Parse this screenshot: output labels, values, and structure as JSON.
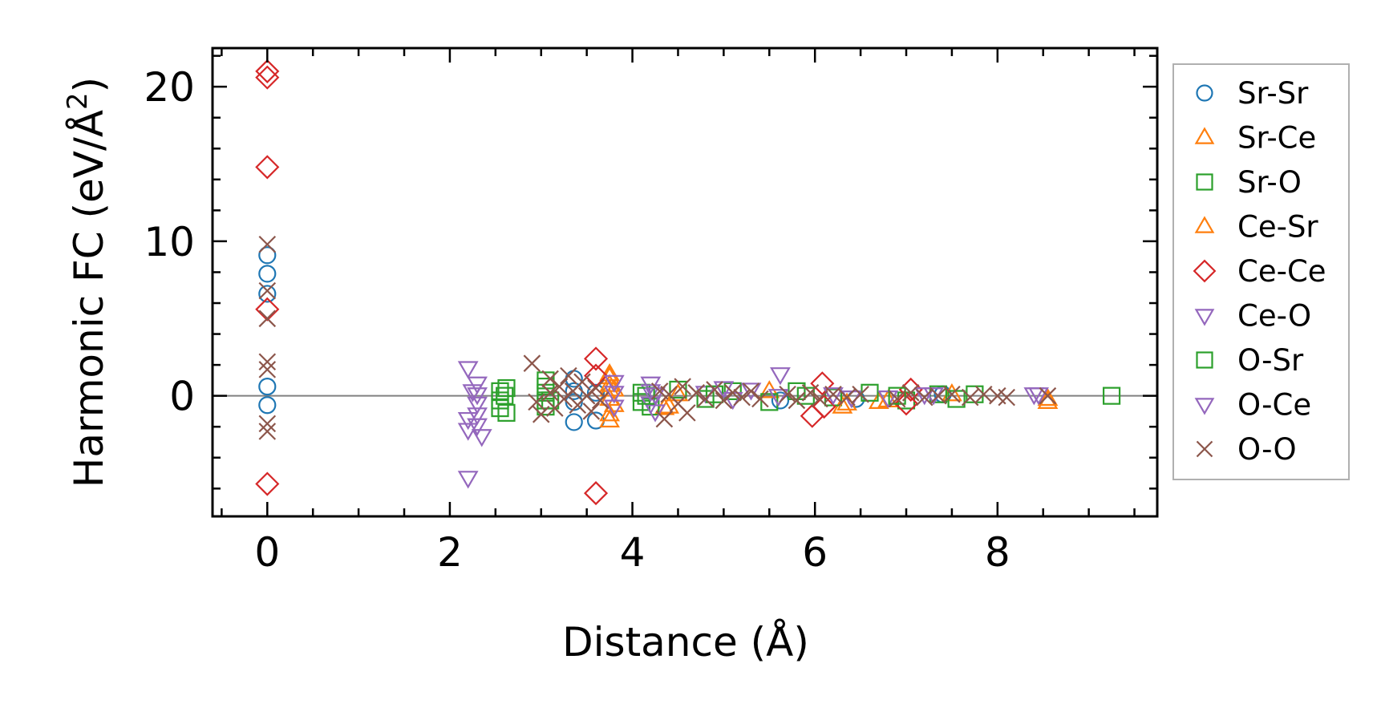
{
  "chart_data": {
    "type": "scatter",
    "xlabel": "Distance (Å)",
    "ylabel": "Harmonic FC (eV/Å",
    "ylabel_sup": "2",
    "ylabel_close": ")",
    "xlim": [
      -0.6,
      9.75
    ],
    "ylim": [
      -7.8,
      22.5
    ],
    "xticks": [
      0,
      2,
      4,
      6,
      8
    ],
    "xtick_labels": [
      "0",
      "2",
      "4",
      "6",
      "8"
    ],
    "yticks": [
      0,
      10,
      20
    ],
    "ytick_labels": [
      "0",
      "10",
      "20"
    ],
    "x_minor_step": 0.5,
    "y_minor_step": 2,
    "zero_line": true,
    "grid": false,
    "legend_position": "outside-right",
    "series": [
      {
        "name": "Sr-Sr",
        "marker": "circle",
        "color": "#1f77b4",
        "points": [
          [
            0,
            9.1
          ],
          [
            0,
            7.9
          ],
          [
            0,
            6.6
          ],
          [
            0,
            0.6
          ],
          [
            0,
            -0.6
          ],
          [
            3.36,
            1.1
          ],
          [
            3.36,
            0.3
          ],
          [
            3.36,
            -0.4
          ],
          [
            3.36,
            -1.7
          ],
          [
            3.6,
            -1.6
          ],
          [
            3.6,
            0.2
          ],
          [
            5.62,
            -0.3
          ],
          [
            6.45,
            -0.2
          ],
          [
            7.4,
            0.1
          ]
        ]
      },
      {
        "name": "Sr-Ce",
        "marker": "triangle-up",
        "color": "#ff7f0e",
        "points": [
          [
            3.75,
            1.2
          ],
          [
            3.75,
            0.7
          ],
          [
            3.75,
            -0.2
          ],
          [
            3.75,
            -1.6
          ],
          [
            3.8,
            0.4
          ],
          [
            4.35,
            -0.8
          ],
          [
            4.5,
            0.1
          ],
          [
            5.5,
            0.3
          ],
          [
            6.3,
            -0.7
          ],
          [
            6.7,
            -0.4
          ],
          [
            7.5,
            0.1
          ],
          [
            8.55,
            -0.4
          ]
        ]
      },
      {
        "name": "Sr-O",
        "marker": "square",
        "color": "#2ca02c",
        "points": [
          [
            2.55,
            0.3
          ],
          [
            2.55,
            -0.3
          ],
          [
            2.55,
            -0.8
          ],
          [
            2.62,
            0.5
          ],
          [
            2.62,
            -1.1
          ],
          [
            3.05,
            1.0
          ],
          [
            3.05,
            0.2
          ],
          [
            3.05,
            -0.7
          ],
          [
            3.1,
            -0.3
          ],
          [
            4.1,
            0.2
          ],
          [
            4.1,
            -0.4
          ],
          [
            4.2,
            -0.7
          ],
          [
            4.5,
            0.4
          ],
          [
            4.8,
            -0.2
          ],
          [
            5.1,
            0.3
          ],
          [
            5.5,
            -0.4
          ],
          [
            5.8,
            0.3
          ],
          [
            6.2,
            -0.1
          ],
          [
            6.6,
            0.2
          ],
          [
            7.0,
            -0.3
          ],
          [
            7.35,
            0.1
          ],
          [
            7.55,
            -0.2
          ],
          [
            7.75,
            0.1
          ],
          [
            9.25,
            0.0
          ]
        ]
      },
      {
        "name": "Ce-Sr",
        "marker": "triangle-up",
        "color": "#ff7f0e",
        "points": [
          [
            3.75,
            1.4
          ],
          [
            3.75,
            0.4
          ],
          [
            3.75,
            -1.2
          ],
          [
            3.8,
            -0.6
          ],
          [
            4.4,
            -0.7
          ],
          [
            6.35,
            -0.5
          ],
          [
            6.8,
            -0.3
          ],
          [
            8.55,
            -0.2
          ]
        ]
      },
      {
        "name": "Ce-Ce",
        "marker": "diamond",
        "color": "#d62728",
        "points": [
          [
            0,
            21.0
          ],
          [
            0,
            20.6
          ],
          [
            0,
            14.8
          ],
          [
            0,
            5.6
          ],
          [
            0,
            -5.7
          ],
          [
            3.6,
            2.4
          ],
          [
            3.6,
            1.3
          ],
          [
            3.6,
            -6.3
          ],
          [
            5.97,
            -1.3
          ],
          [
            6.08,
            0.8
          ],
          [
            6.1,
            -0.7
          ],
          [
            7.0,
            -0.5
          ],
          [
            7.05,
            0.4
          ]
        ]
      },
      {
        "name": "Ce-O",
        "marker": "triangle-down",
        "color": "#9467bd",
        "points": [
          [
            2.2,
            1.8
          ],
          [
            2.2,
            -1.5
          ],
          [
            2.2,
            -2.2
          ],
          [
            2.2,
            -5.3
          ],
          [
            2.3,
            0.8
          ],
          [
            2.3,
            0.1
          ],
          [
            2.3,
            -0.5
          ],
          [
            2.3,
            -1.2
          ],
          [
            2.35,
            -2.6
          ],
          [
            3.8,
            0.9
          ],
          [
            3.8,
            -0.7
          ],
          [
            4.2,
            0.8
          ],
          [
            4.2,
            0.3
          ],
          [
            4.2,
            -0.5
          ],
          [
            4.25,
            -1.0
          ],
          [
            4.8,
            0.2
          ],
          [
            5.1,
            -0.2
          ],
          [
            5.3,
            0.4
          ],
          [
            5.62,
            1.4
          ],
          [
            6.2,
            0.1
          ],
          [
            6.8,
            -0.1
          ],
          [
            7.3,
            0.1
          ],
          [
            8.45,
            0.1
          ]
        ]
      },
      {
        "name": "O-Sr",
        "marker": "square",
        "color": "#2ca02c",
        "points": [
          [
            2.6,
            0.0
          ],
          [
            3.05,
            0.6
          ],
          [
            3.05,
            -0.3
          ],
          [
            4.15,
            0.0
          ],
          [
            4.9,
            0.1
          ],
          [
            5.9,
            0.0
          ],
          [
            6.9,
            0.0
          ]
        ]
      },
      {
        "name": "O-Ce",
        "marker": "triangle-down",
        "color": "#9467bd",
        "points": [
          [
            2.25,
            0.3
          ],
          [
            2.3,
            -1.9
          ],
          [
            3.8,
            0.2
          ],
          [
            4.25,
            0.1
          ],
          [
            5.0,
            0.5
          ],
          [
            5.6,
            0.0
          ],
          [
            6.4,
            -0.1
          ],
          [
            7.2,
            0.1
          ],
          [
            8.4,
            0.1
          ]
        ]
      },
      {
        "name": "O-O",
        "marker": "x",
        "color": "#8c564b",
        "points": [
          [
            0,
            9.8
          ],
          [
            0,
            6.8
          ],
          [
            0,
            5.0
          ],
          [
            0,
            2.2
          ],
          [
            0,
            1.7
          ],
          [
            0,
            -1.8
          ],
          [
            0,
            -2.3
          ],
          [
            2.9,
            2.1
          ],
          [
            2.95,
            -0.4
          ],
          [
            3.0,
            -1.2
          ],
          [
            3.1,
            1.1
          ],
          [
            3.1,
            0.2
          ],
          [
            3.15,
            -0.8
          ],
          [
            3.2,
            0.6
          ],
          [
            3.25,
            -0.2
          ],
          [
            3.3,
            1.3
          ],
          [
            3.35,
            0.3
          ],
          [
            3.4,
            -0.6
          ],
          [
            3.45,
            0.9
          ],
          [
            3.5,
            0.0
          ],
          [
            3.55,
            -1.0
          ],
          [
            3.6,
            0.5
          ],
          [
            3.65,
            -0.3
          ],
          [
            4.3,
            0.3
          ],
          [
            4.35,
            -1.5
          ],
          [
            4.4,
            0.1
          ],
          [
            4.5,
            -0.5
          ],
          [
            4.55,
            0.6
          ],
          [
            4.6,
            -1.1
          ],
          [
            4.7,
            0.2
          ],
          [
            4.8,
            -0.2
          ],
          [
            4.9,
            0.4
          ],
          [
            5.0,
            -0.3
          ],
          [
            5.1,
            0.2
          ],
          [
            5.2,
            -0.1
          ],
          [
            5.3,
            0.3
          ],
          [
            5.4,
            -0.2
          ],
          [
            5.7,
            0.1
          ],
          [
            5.8,
            -0.3
          ],
          [
            5.95,
            0.2
          ],
          [
            6.05,
            -0.2
          ],
          [
            6.2,
            0.1
          ],
          [
            6.35,
            -0.1
          ],
          [
            6.5,
            0.1
          ],
          [
            6.9,
            -0.2
          ],
          [
            7.05,
            0.2
          ],
          [
            7.2,
            -0.1
          ],
          [
            7.35,
            0.0
          ],
          [
            7.5,
            0.1
          ],
          [
            7.7,
            -0.1
          ],
          [
            7.85,
            0.1
          ],
          [
            8.0,
            0.0
          ],
          [
            8.1,
            -0.1
          ],
          [
            8.55,
            0.0
          ]
        ]
      }
    ]
  }
}
